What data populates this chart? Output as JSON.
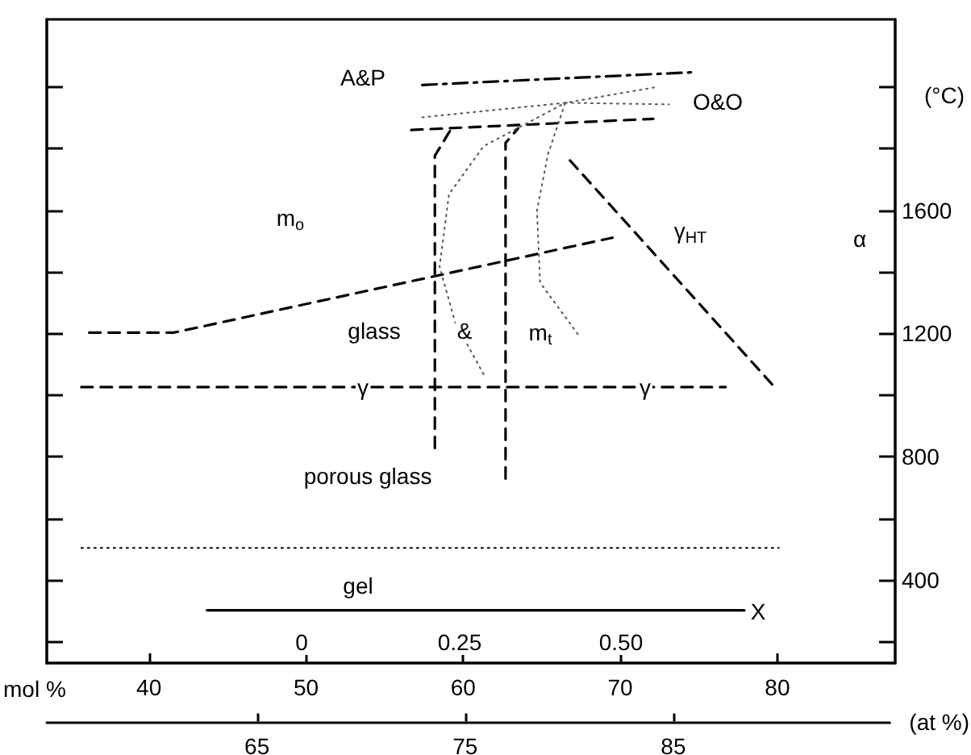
{
  "chart_data": {
    "type": "line",
    "xlabel": "mol %",
    "ylabel": "(°C)",
    "x2label": "(at %)",
    "xlim": [
      33.5,
      87.5
    ],
    "xticks": [
      40,
      50,
      60,
      70,
      80
    ],
    "x2lim": [
      54.9,
      95.4
    ],
    "x2ticks": [
      65,
      75,
      85
    ],
    "ylim": [
      130,
      2220
    ],
    "yticks": [
      {
        "value": 200,
        "label": null
      },
      400,
      {
        "value": 600,
        "label": null
      },
      800,
      {
        "value": 1000,
        "label": null
      },
      1200,
      {
        "value": 1400,
        "label": null
      },
      1600,
      {
        "value": 1800,
        "label": null
      },
      {
        "value": 2000,
        "label": null
      }
    ],
    "grid": false,
    "marker": "none",
    "series": [
      {
        "color": "#000000",
        "line_style": "dashed",
        "x": [
          36.2,
          41.6,
          69.5
        ],
        "values": [
          1203,
          1203,
          1511
        ]
      },
      {
        "color": "#000000",
        "line_style": "dashed",
        "x": [
          35.7,
          76.7
        ],
        "values": [
          1026,
          1026
        ]
      },
      {
        "color": "#000000",
        "line_style": "dashed",
        "x": [
          66.8,
          80
        ],
        "values": [
          1762,
          1016
        ]
      },
      {
        "color": "#000000",
        "line_style": "dashed",
        "x": [
          58.2,
          58.2,
          59.2
        ],
        "values": [
          828,
          1777,
          1861
        ]
      },
      {
        "color": "#000000",
        "line_style": "dashed",
        "x": [
          62.7,
          62.7,
          63.5
        ],
        "values": [
          729,
          1819,
          1866
        ]
      },
      {
        "color": "#000000",
        "line_style": "dashed",
        "x": [
          56.7,
          72.1
        ],
        "values": [
          1861,
          1897
        ]
      },
      {
        "color": "#000000",
        "line_style": "dashdot",
        "x": [
          57.4,
          74.5
        ],
        "values": [
          2007,
          2048
        ]
      },
      {
        "color": "#555555",
        "line_style": "dotted",
        "x": [
          57.4,
          66.5,
          72.4
        ],
        "values": [
          1902,
          1949,
          2001
        ]
      },
      {
        "color": "#555555",
        "line_style": "dotted",
        "x": [
          66.5,
          73.1
        ],
        "values": [
          1949,
          1944
        ]
      },
      {
        "color": "#555555",
        "line_style": "dotted",
        "x": [
          61.3,
          59.5,
          58.5,
          59.1,
          61.3,
          66.5
        ],
        "values": [
          1068,
          1235,
          1417,
          1652,
          1808,
          1949
        ]
      },
      {
        "color": "#555555",
        "line_style": "dotted",
        "x": [
          67.3,
          64.9,
          64.7,
          65.4,
          66.5
        ],
        "values": [
          1198,
          1365,
          1600,
          1782,
          1949
        ]
      },
      {
        "color": "#000000",
        "line_style": "dotted",
        "x": [
          35.7,
          80.1
        ],
        "values": [
          504,
          504
        ]
      },
      {
        "color": "#000000",
        "line_style": "solid",
        "x": [
          43.7,
          77.9
        ],
        "values": [
          301,
          301
        ]
      }
    ],
    "annotations": [
      "m$_{o}$",
      "A&P",
      "O&O",
      "γ$_{HT}$",
      "glass",
      "&",
      "m$_{t}$",
      "γ",
      "γ",
      "porous glass",
      "gel",
      "α",
      "0",
      "0.25",
      "0.50",
      "X"
    ]
  }
}
